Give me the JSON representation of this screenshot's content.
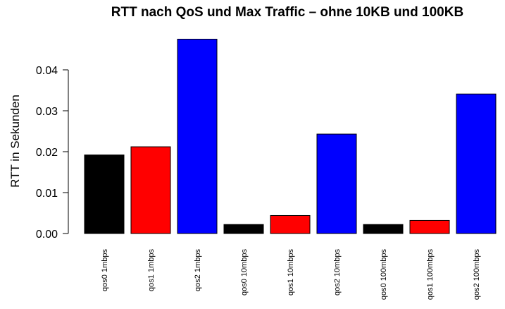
{
  "chart_data": {
    "type": "bar",
    "title": "RTT nach QoS und Max Traffic – ohne 10KB und 100KB",
    "xlabel": "",
    "ylabel": "RTT in Sekunden",
    "ylim": [
      0,
      0.048
    ],
    "yticks": [
      0.0,
      0.01,
      0.02,
      0.03,
      0.04
    ],
    "ytick_labels": [
      "0.00",
      "0.01",
      "0.02",
      "0.03",
      "0.04"
    ],
    "categories": [
      "qos0 1mbps",
      "qos1 1mbps",
      "qos2 1mbps",
      "qos0 10mbps",
      "qos1 10mbps",
      "qos2 10mbps",
      "qos0 100mbps",
      "qos1 100mbps",
      "qos2 100mbps"
    ],
    "values": [
      0.0192,
      0.0212,
      0.0475,
      0.0022,
      0.0044,
      0.0243,
      0.0022,
      0.0032,
      0.0341
    ],
    "colors": [
      "#000000",
      "#ff0000",
      "#0000ff",
      "#000000",
      "#ff0000",
      "#0000ff",
      "#000000",
      "#ff0000",
      "#0000ff"
    ],
    "grid": false,
    "legend": "none"
  }
}
